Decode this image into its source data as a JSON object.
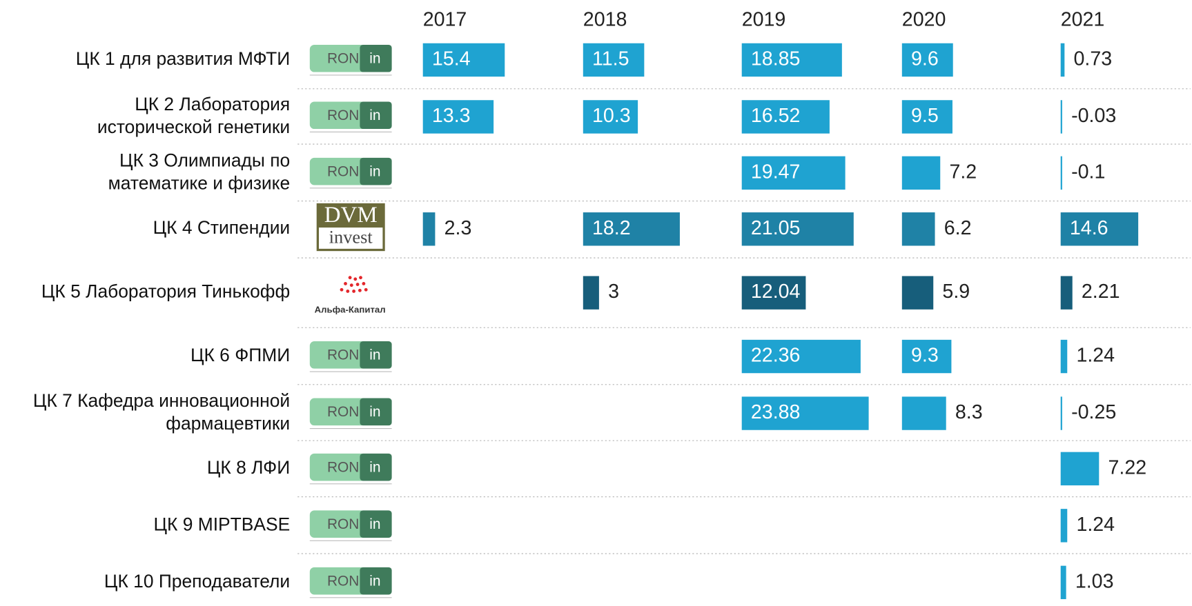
{
  "columns": [
    "2017",
    "2018",
    "2019",
    "2020",
    "2021"
  ],
  "rows": [
    {
      "label": [
        "ЦК 1 для развития МФТИ"
      ],
      "logo": [
        "RON",
        "in"
      ],
      "color": "#1fa3d1",
      "values": [
        15.4,
        11.5,
        18.85,
        9.6,
        0.73
      ]
    },
    {
      "label": [
        "ЦК 2 Лаборатория",
        "исторической генетики"
      ],
      "logo": [
        "RON",
        "in"
      ],
      "color": "#1fa3d1",
      "values": [
        13.3,
        10.3,
        16.52,
        9.5,
        -0.03
      ]
    },
    {
      "label": [
        "ЦК 3 Олимпиады по",
        "математике и физике"
      ],
      "logo": [
        "RON",
        "in"
      ],
      "color": "#1fa3d1",
      "values": [
        null,
        null,
        19.47,
        7.2,
        -0.1
      ]
    },
    {
      "label": [
        "ЦК 4 Стипендии"
      ],
      "logo": [
        "DVM",
        "invest"
      ],
      "color": "#1f82a6",
      "values": [
        2.3,
        18.2,
        21.05,
        6.2,
        14.6
      ]
    },
    {
      "label": [
        "ЦК 5 Лаборатория Тинькофф"
      ],
      "logo": [
        "Альфа-Капитал"
      ],
      "color": "#175e7b",
      "values": [
        null,
        3,
        12.04,
        5.9,
        2.21
      ]
    },
    {
      "label": [
        "ЦК 6 ФПМИ"
      ],
      "logo": [
        "RON",
        "in"
      ],
      "color": "#1fa3d1",
      "values": [
        null,
        null,
        22.36,
        9.3,
        1.24
      ]
    },
    {
      "label": [
        "ЦК 7 Кафедра инновационной",
        "фармацевтики"
      ],
      "logo": [
        "RON",
        "in"
      ],
      "color": "#1fa3d1",
      "values": [
        null,
        null,
        23.88,
        8.3,
        -0.25
      ]
    },
    {
      "label": [
        "ЦК 8 ЛФИ"
      ],
      "logo": [
        "RON",
        "in"
      ],
      "color": "#1fa3d1",
      "values": [
        null,
        null,
        null,
        null,
        7.22
      ]
    },
    {
      "label": [
        "ЦК 9 MIPTBASE"
      ],
      "logo": [
        "RON",
        "in"
      ],
      "color": "#1fa3d1",
      "values": [
        null,
        null,
        null,
        null,
        1.24
      ]
    },
    {
      "label": [
        "ЦК 10 Преподаватели"
      ],
      "logo": [
        "RON",
        "in"
      ],
      "color": "#1fa3d1",
      "values": [
        null,
        null,
        null,
        null,
        1.03
      ]
    }
  ]
}
